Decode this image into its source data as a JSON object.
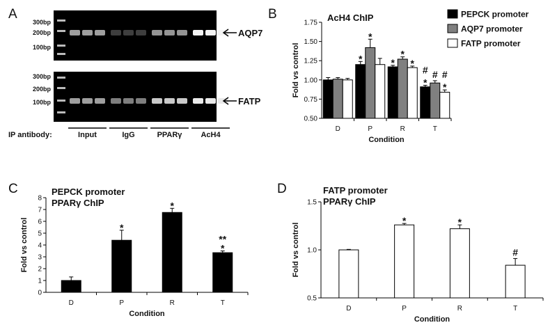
{
  "panels": {
    "A": "A",
    "B": "B",
    "C": "C",
    "D": "D"
  },
  "gel": {
    "ladder_labels_top": [
      "300bp",
      "200bp",
      "100bp"
    ],
    "ladder_labels_bottom": [
      "300bp",
      "200bp",
      "100bp"
    ],
    "top_band": "AQP7",
    "bottom_band": "FATP",
    "ip_label": "IP antibody:",
    "groups": [
      "Input",
      "IgG",
      "PPARγ",
      "AcH4"
    ],
    "top_band_intensity": [
      0.55,
      0.1,
      0.5,
      0.95
    ],
    "bottom_band_intensity": [
      0.55,
      0.4,
      0.75,
      0.9
    ]
  },
  "chart_data": [
    {
      "id": "B",
      "type": "bar",
      "title": "AcH4 ChIP",
      "xlabel": "Condition",
      "ylabel": "Fold vs control",
      "categories": [
        "D",
        "P",
        "R",
        "T"
      ],
      "ylim": [
        0.5,
        1.75
      ],
      "yticks": [
        "0.50",
        "0.75",
        "1.00",
        "1.25",
        "1.50",
        "1.75"
      ],
      "legend_position": "top-right",
      "series": [
        {
          "name": "PEPCK promoter",
          "color": "#000000",
          "values": [
            1.0,
            1.2,
            1.17,
            0.91
          ],
          "errors": [
            0.03,
            0.04,
            0.02,
            0.02
          ]
        },
        {
          "name": "AQP7 promoter",
          "color": "#808080",
          "values": [
            1.01,
            1.42,
            1.27,
            0.96
          ],
          "errors": [
            0.02,
            0.11,
            0.03,
            0.03
          ]
        },
        {
          "name": "FATP promoter",
          "color": "#ffffff",
          "values": [
            1.0,
            1.2,
            1.16,
            0.84
          ],
          "errors": [
            0.02,
            0.08,
            0.02,
            0.03
          ]
        }
      ],
      "annotations": [
        {
          "series": 0,
          "category": 1,
          "text": "*"
        },
        {
          "series": 1,
          "category": 1,
          "text": "*"
        },
        {
          "series": 0,
          "category": 2,
          "text": "*"
        },
        {
          "series": 1,
          "category": 2,
          "text": "*"
        },
        {
          "series": 2,
          "category": 2,
          "text": "*"
        },
        {
          "series": 0,
          "category": 3,
          "text": "*"
        },
        {
          "series": 0,
          "category": 3,
          "text": "#",
          "level": 2
        },
        {
          "series": 1,
          "category": 3,
          "text": "#"
        },
        {
          "series": 2,
          "category": 3,
          "text": "*"
        },
        {
          "series": 2,
          "category": 3,
          "text": "#",
          "level": 2
        }
      ]
    },
    {
      "id": "C",
      "type": "bar",
      "title": "PEPCK promoter\nPPARγ ChIP",
      "xlabel": "Condition",
      "ylabel": "Fold vs control",
      "categories": [
        "D",
        "P",
        "R",
        "T"
      ],
      "ylim": [
        0,
        8
      ],
      "yticks": [
        "0",
        "1",
        "2",
        "3",
        "4",
        "5",
        "6",
        "7",
        "8"
      ],
      "series": [
        {
          "color": "#000000",
          "values": [
            1.0,
            4.4,
            6.75,
            3.35
          ],
          "errors": [
            0.3,
            0.85,
            0.35,
            0.15
          ]
        }
      ],
      "annotations": [
        {
          "series": 0,
          "category": 1,
          "text": "*"
        },
        {
          "series": 0,
          "category": 2,
          "text": "*"
        },
        {
          "series": 0,
          "category": 3,
          "text": "*"
        },
        {
          "series": 0,
          "category": 3,
          "text": "**",
          "level": 2
        }
      ]
    },
    {
      "id": "D",
      "type": "bar",
      "title": "FATP promoter\nPPARγ ChIP",
      "xlabel": "Condition",
      "ylabel": "Fold vs control",
      "categories": [
        "D",
        "P",
        "R",
        "T"
      ],
      "ylim": [
        0.5,
        1.5
      ],
      "yticks": [
        "0.5",
        "1.0",
        "1.5"
      ],
      "series": [
        {
          "color": "#ffffff",
          "values": [
            1.0,
            1.26,
            1.22,
            0.84
          ],
          "errors": [
            0.005,
            0.015,
            0.04,
            0.07
          ]
        }
      ],
      "annotations": [
        {
          "series": 0,
          "category": 1,
          "text": "*"
        },
        {
          "series": 0,
          "category": 2,
          "text": "*"
        },
        {
          "series": 0,
          "category": 3,
          "text": "#"
        }
      ]
    }
  ]
}
